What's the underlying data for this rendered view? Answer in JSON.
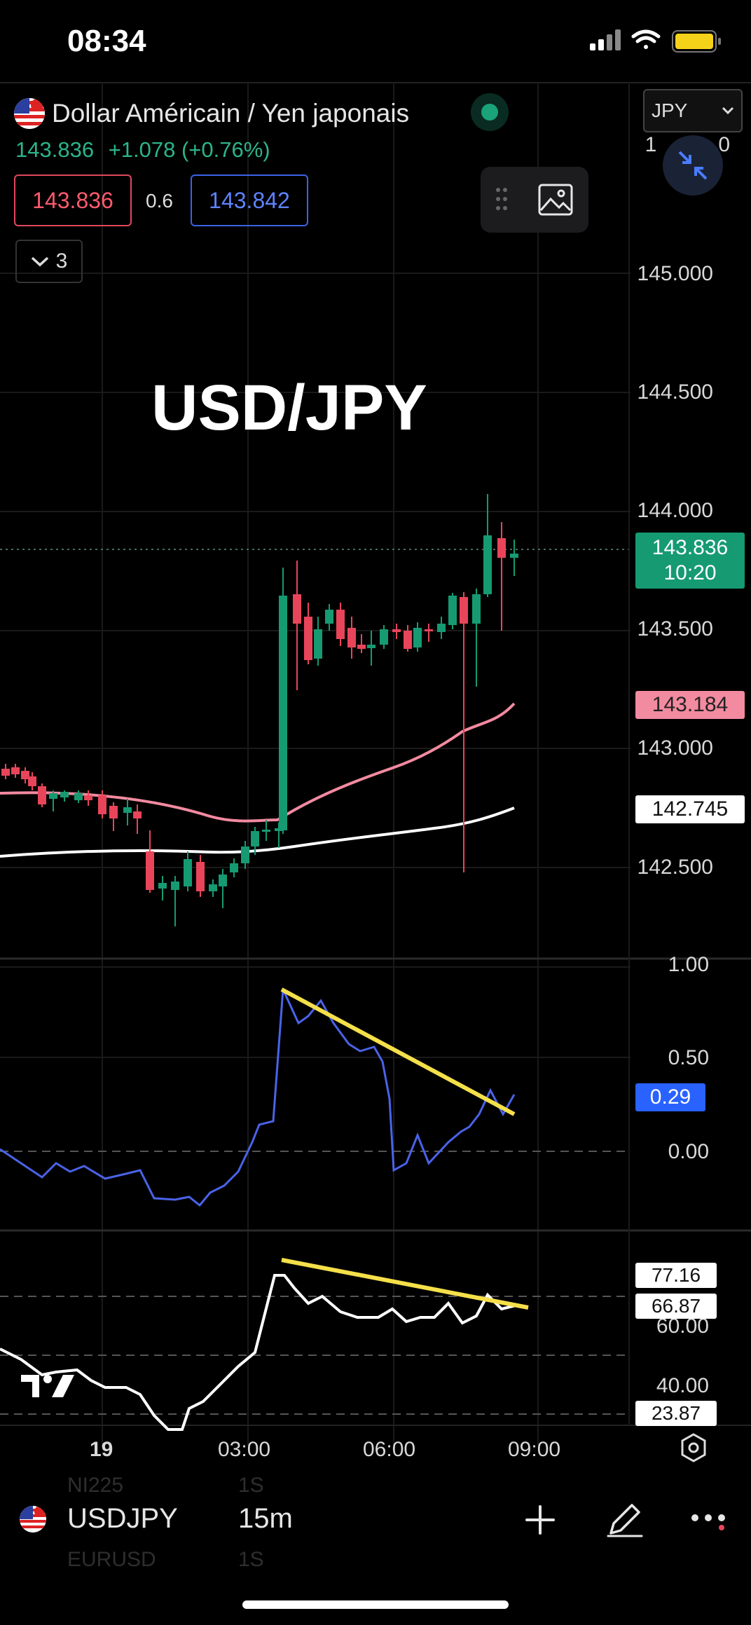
{
  "status_bar": {
    "time": "08:34",
    "battery_color": "#f5d21a"
  },
  "header": {
    "title": "Dollar Américain / Yen japonais",
    "last_price": "143.836",
    "change": "+1.078 (+0.76%)",
    "bid": "143.836",
    "spread": "0.6",
    "ask": "143.842",
    "collapse_count": "3",
    "currency": "JPY"
  },
  "chart_overlay_text": "USD/JPY",
  "price_axis": [
    "145.000",
    "144.500",
    "144.000",
    "143.500",
    "143.000",
    "142.500"
  ],
  "price_axis_top_partial": "1",
  "price_axis_top_partial_end": "0",
  "tags": {
    "last_price": "143.836",
    "countdown": "10:20",
    "ma_fast": "143.184",
    "ma_slow": "142.745"
  },
  "oscillator": {
    "axis": [
      "1.00",
      "0.50",
      "0.00"
    ],
    "current": "0.29"
  },
  "rsi": {
    "axis": [
      "60.00",
      "40.00"
    ],
    "values": [
      "77.16",
      "66.87",
      "23.87"
    ]
  },
  "time_axis": [
    "19",
    "03:00",
    "06:00",
    "09:00"
  ],
  "bottom_bar": {
    "symbol": "USDJPY",
    "interval": "15m",
    "ghost_symbol_top": "NI225",
    "ghost_interval_top": "1S",
    "ghost_symbol_bottom": "EURUSD",
    "ghost_interval_bottom": "1S"
  },
  "colors": {
    "up": "#169a72",
    "down": "#e8455a",
    "ma_fast": "#f28aa0",
    "ma_slow": "#ffffff",
    "oscillator": "#4a63e8",
    "trendline": "#f5e04a"
  },
  "icons": [
    "signal-icon",
    "wifi-icon",
    "battery-icon",
    "us-flag-icon",
    "chevron-down-icon",
    "drag-handle-icon",
    "image-icon",
    "shrink-icon",
    "settings-icon",
    "plus-icon",
    "pencil-icon",
    "more-icon"
  ]
}
